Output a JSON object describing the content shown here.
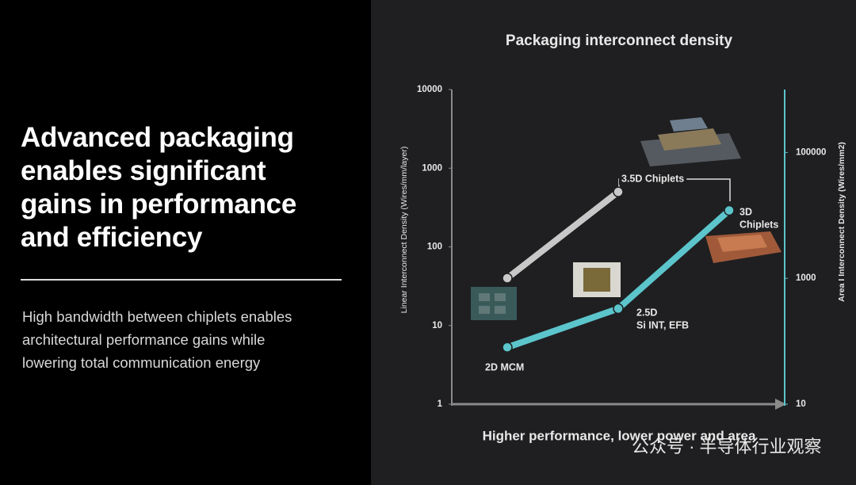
{
  "slide": {
    "heading": [
      "Advanced packaging",
      "enables significant",
      "gains in performance",
      "and efficiency"
    ],
    "body": [
      "High bandwidth between chiplets enables",
      "architectural performance gains while",
      "lowering total communication energy"
    ],
    "watermark": "公众号 · 半导体行业观察"
  },
  "chart_data": {
    "type": "line",
    "title": "Packaging interconnect density",
    "x_label": "Higher performance, lower power and area",
    "y_label": "Linear Interconnect Density  (Wires/mm/layer)",
    "y2_label": "Area I Interconnect Density (Wires/mm2)",
    "log_scale": true,
    "xlim": [
      0.5,
      3.5
    ],
    "ylim": [
      1,
      10000
    ],
    "yticks": [
      1,
      10,
      100,
      1000,
      10000
    ],
    "y2lim": [
      10,
      1000000
    ],
    "y2ticks": [
      10,
      1000,
      100000
    ],
    "y2_color": "#5cc5cc",
    "series": [
      {
        "color": "#c8c8c8",
        "x": [
          1,
          2
        ],
        "values": [
          40,
          500
        ]
      },
      {
        "color": "#5cc5cc",
        "axis": "y2",
        "x": [
          1,
          2,
          3
        ],
        "values": [
          80,
          330,
          12000
        ]
      }
    ],
    "annotations": [
      {
        "lines": [
          "2D MCM"
        ]
      },
      {
        "lines": [
          "2.5D",
          "Si INT, EFB"
        ]
      },
      {
        "lines": [
          "3.5D Chiplets"
        ]
      },
      {
        "lines": [
          "3D",
          "Chiplets"
        ]
      }
    ]
  }
}
